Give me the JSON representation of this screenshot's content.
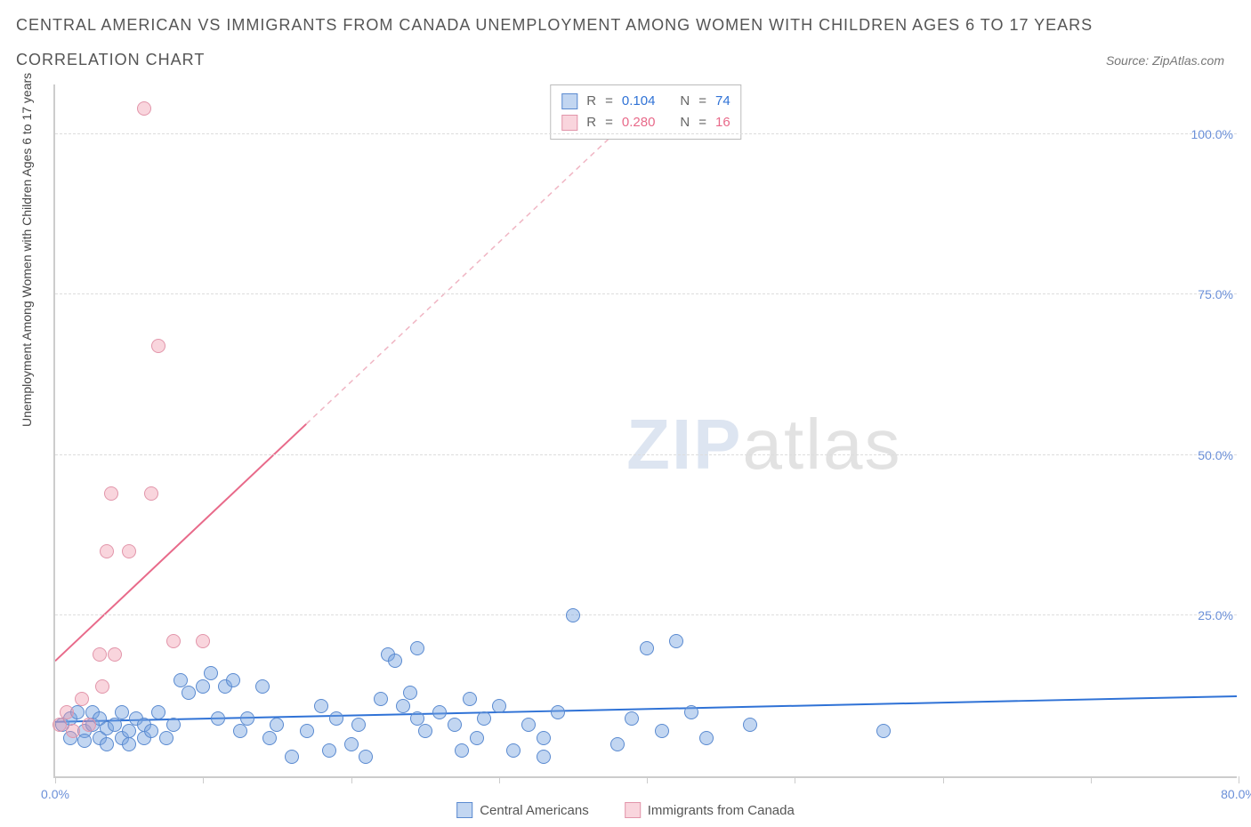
{
  "header": {
    "title_line1": "CENTRAL AMERICAN VS IMMIGRANTS FROM CANADA UNEMPLOYMENT AMONG WOMEN WITH CHILDREN AGES 6 TO 17 YEARS",
    "title_line2": "CORRELATION CHART",
    "source": "Source: ZipAtlas.com"
  },
  "chart": {
    "type": "scatter",
    "background_color": "#ffffff",
    "grid_color": "#dddddd",
    "axis_color": "#cccccc",
    "xlim": [
      0,
      80
    ],
    "ylim": [
      0,
      108
    ],
    "x_ticks": [
      0,
      10,
      20,
      30,
      40,
      50,
      60,
      70,
      80
    ],
    "x_tick_labels": {
      "0": "0.0%",
      "80": "80.0%"
    },
    "y_gridlines": [
      25,
      50,
      75,
      100
    ],
    "y_tick_labels": {
      "25": "25.0%",
      "50": "50.0%",
      "75": "75.0%",
      "100": "100.0%"
    },
    "y_title": "Unemployment Among Women with Children Ages 6 to 17 years",
    "axis_label_color": "#6a8fd8",
    "axis_label_fontsize": 14,
    "y_title_color": "#444444",
    "watermark": {
      "part1": "ZIP",
      "part2": "atlas"
    },
    "series": [
      {
        "name": "Central Americans",
        "label": "Central Americans",
        "fill_color": "rgba(120,165,225,0.45)",
        "stroke_color": "#5a8ad0",
        "marker_radius": 8,
        "trend": {
          "x1": 0,
          "y1": 8.5,
          "x2": 80,
          "y2": 12.5,
          "color": "#2f72d6",
          "width": 2,
          "dash": "none"
        },
        "stats_color": "#2f72d6",
        "R": "0.104",
        "N": "74",
        "points": [
          [
            0.5,
            8
          ],
          [
            1,
            6
          ],
          [
            1,
            9
          ],
          [
            1.5,
            10
          ],
          [
            2,
            7
          ],
          [
            2,
            5.5
          ],
          [
            2.5,
            8
          ],
          [
            2.5,
            10
          ],
          [
            3,
            6
          ],
          [
            3,
            9
          ],
          [
            3.5,
            7.5
          ],
          [
            3.5,
            5
          ],
          [
            4,
            8
          ],
          [
            4.5,
            6
          ],
          [
            4.5,
            10
          ],
          [
            5,
            7
          ],
          [
            5,
            5
          ],
          [
            5.5,
            9
          ],
          [
            6,
            6
          ],
          [
            6,
            8
          ],
          [
            6.5,
            7
          ],
          [
            7,
            10
          ],
          [
            7.5,
            6
          ],
          [
            8,
            8
          ],
          [
            8.5,
            15
          ],
          [
            9,
            13
          ],
          [
            10,
            14
          ],
          [
            10.5,
            16
          ],
          [
            11,
            9
          ],
          [
            11.5,
            14
          ],
          [
            12,
            15
          ],
          [
            12.5,
            7
          ],
          [
            13,
            9
          ],
          [
            14,
            14
          ],
          [
            14.5,
            6
          ],
          [
            15,
            8
          ],
          [
            16,
            3
          ],
          [
            17,
            7
          ],
          [
            18,
            11
          ],
          [
            18.5,
            4
          ],
          [
            19,
            9
          ],
          [
            20,
            5
          ],
          [
            20.5,
            8
          ],
          [
            21,
            3
          ],
          [
            22,
            12
          ],
          [
            22.5,
            19
          ],
          [
            23,
            18
          ],
          [
            23.5,
            11
          ],
          [
            24,
            13
          ],
          [
            24.5,
            9
          ],
          [
            24.5,
            20
          ],
          [
            25,
            7
          ],
          [
            26,
            10
          ],
          [
            27,
            8
          ],
          [
            27.5,
            4
          ],
          [
            28,
            12
          ],
          [
            28.5,
            6
          ],
          [
            29,
            9
          ],
          [
            30,
            11
          ],
          [
            31,
            4
          ],
          [
            32,
            8
          ],
          [
            33,
            6
          ],
          [
            33,
            3
          ],
          [
            34,
            10
          ],
          [
            35,
            25
          ],
          [
            38,
            5
          ],
          [
            39,
            9
          ],
          [
            40,
            20
          ],
          [
            41,
            7
          ],
          [
            42,
            21
          ],
          [
            43,
            10
          ],
          [
            44,
            6
          ],
          [
            47,
            8
          ],
          [
            56,
            7
          ]
        ]
      },
      {
        "name": "Immigrants from Canada",
        "label": "Immigrants from Canada",
        "fill_color": "rgba(240,150,170,0.40)",
        "stroke_color": "#e295aa",
        "marker_radius": 8,
        "trend": {
          "x1": 0,
          "y1": 18,
          "x2": 17,
          "y2": 55,
          "color": "#e86a8a",
          "width": 2,
          "dash": "none"
        },
        "trend_dashed": {
          "x1": 17,
          "y1": 55,
          "x2": 40,
          "y2": 105,
          "color": "#f0b5c3",
          "width": 1.5,
          "dash": "6,5"
        },
        "stats_color": "#e86a8a",
        "R": "0.280",
        "N": "16",
        "points": [
          [
            0.3,
            8
          ],
          [
            0.8,
            10
          ],
          [
            1.2,
            7
          ],
          [
            1.8,
            12
          ],
          [
            2.3,
            8
          ],
          [
            3,
            19
          ],
          [
            3.2,
            14
          ],
          [
            4,
            19
          ],
          [
            3.5,
            35
          ],
          [
            5,
            35
          ],
          [
            3.8,
            44
          ],
          [
            6.5,
            44
          ],
          [
            7,
            67
          ],
          [
            6,
            104
          ],
          [
            8,
            21
          ],
          [
            10,
            21
          ]
        ]
      }
    ],
    "stats_box": {
      "rows": [
        {
          "swatch_fill": "rgba(120,165,225,0.45)",
          "swatch_border": "#5a8ad0",
          "R_label": "R",
          "R_value": "0.104",
          "N_label": "N",
          "N_value": "74",
          "value_color": "#2f72d6"
        },
        {
          "swatch_fill": "rgba(240,150,170,0.40)",
          "swatch_border": "#e295aa",
          "R_label": "R",
          "R_value": "0.280",
          "N_label": "N",
          "N_value": "16",
          "value_color": "#e86a8a"
        }
      ]
    },
    "bottom_legend": [
      {
        "swatch_fill": "rgba(120,165,225,0.45)",
        "swatch_border": "#5a8ad0",
        "label": "Central Americans"
      },
      {
        "swatch_fill": "rgba(240,150,170,0.40)",
        "swatch_border": "#e295aa",
        "label": "Immigrants from Canada"
      }
    ]
  }
}
